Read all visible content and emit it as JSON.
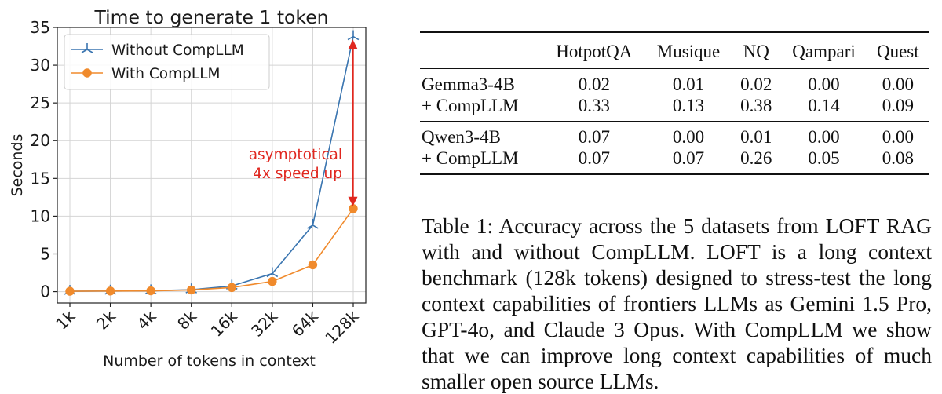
{
  "chart_data": {
    "type": "line",
    "title": "Time to generate 1 token",
    "xlabel": "Number of tokens in context",
    "ylabel": "Seconds",
    "categories": [
      "1k",
      "2k",
      "4k",
      "8k",
      "16k",
      "32k",
      "64k",
      "128k"
    ],
    "ylim": [
      -1.5,
      35
    ],
    "yticks": [
      0,
      5,
      10,
      15,
      20,
      25,
      30,
      35
    ],
    "grid": true,
    "legend_position": "top-left",
    "series": [
      {
        "name": "Without CompLLM",
        "color": "#3a75b0",
        "marker": "tri-cross",
        "values": [
          0.05,
          0.08,
          0.12,
          0.25,
          0.75,
          2.4,
          8.8,
          33.8
        ]
      },
      {
        "name": "With CompLLM",
        "color": "#f08a2c",
        "marker": "circle",
        "values": [
          0.05,
          0.08,
          0.11,
          0.22,
          0.55,
          1.35,
          3.55,
          11.0
        ]
      }
    ],
    "annotation": {
      "lines": [
        "asymptotical",
        "4x speed up"
      ],
      "color": "#e0271f",
      "arrow_category": "128k",
      "arrow_from": 33.8,
      "arrow_to": 11.0
    }
  },
  "table": {
    "columns": [
      "",
      "HotpotQA",
      "Musique",
      "NQ",
      "Qampari",
      "Quest"
    ],
    "groups": [
      {
        "rows": [
          {
            "label": "Gemma3-4B",
            "values": [
              "0.02",
              "0.01",
              "0.02",
              "0.00",
              "0.00"
            ]
          },
          {
            "label": "+ CompLLM",
            "values": [
              "0.33",
              "0.13",
              "0.38",
              "0.14",
              "0.09"
            ]
          }
        ]
      },
      {
        "rows": [
          {
            "label": "Qwen3-4B",
            "values": [
              "0.07",
              "0.00",
              "0.01",
              "0.00",
              "0.00"
            ]
          },
          {
            "label": "+ CompLLM",
            "values": [
              "0.07",
              "0.07",
              "0.26",
              "0.05",
              "0.08"
            ]
          }
        ]
      }
    ]
  },
  "caption": "Table 1: Accuracy across the 5 datasets from LOFT RAG with and without CompLLM. LOFT is a long context benchmark (128k tokens) designed to stress-test the long context capabilities of frontiers LLMs as Gemini 1.5 Pro, GPT-4o, and Claude 3 Opus. With CompLLM we show that we can improve long context capabilities of much smaller open source LLMs."
}
